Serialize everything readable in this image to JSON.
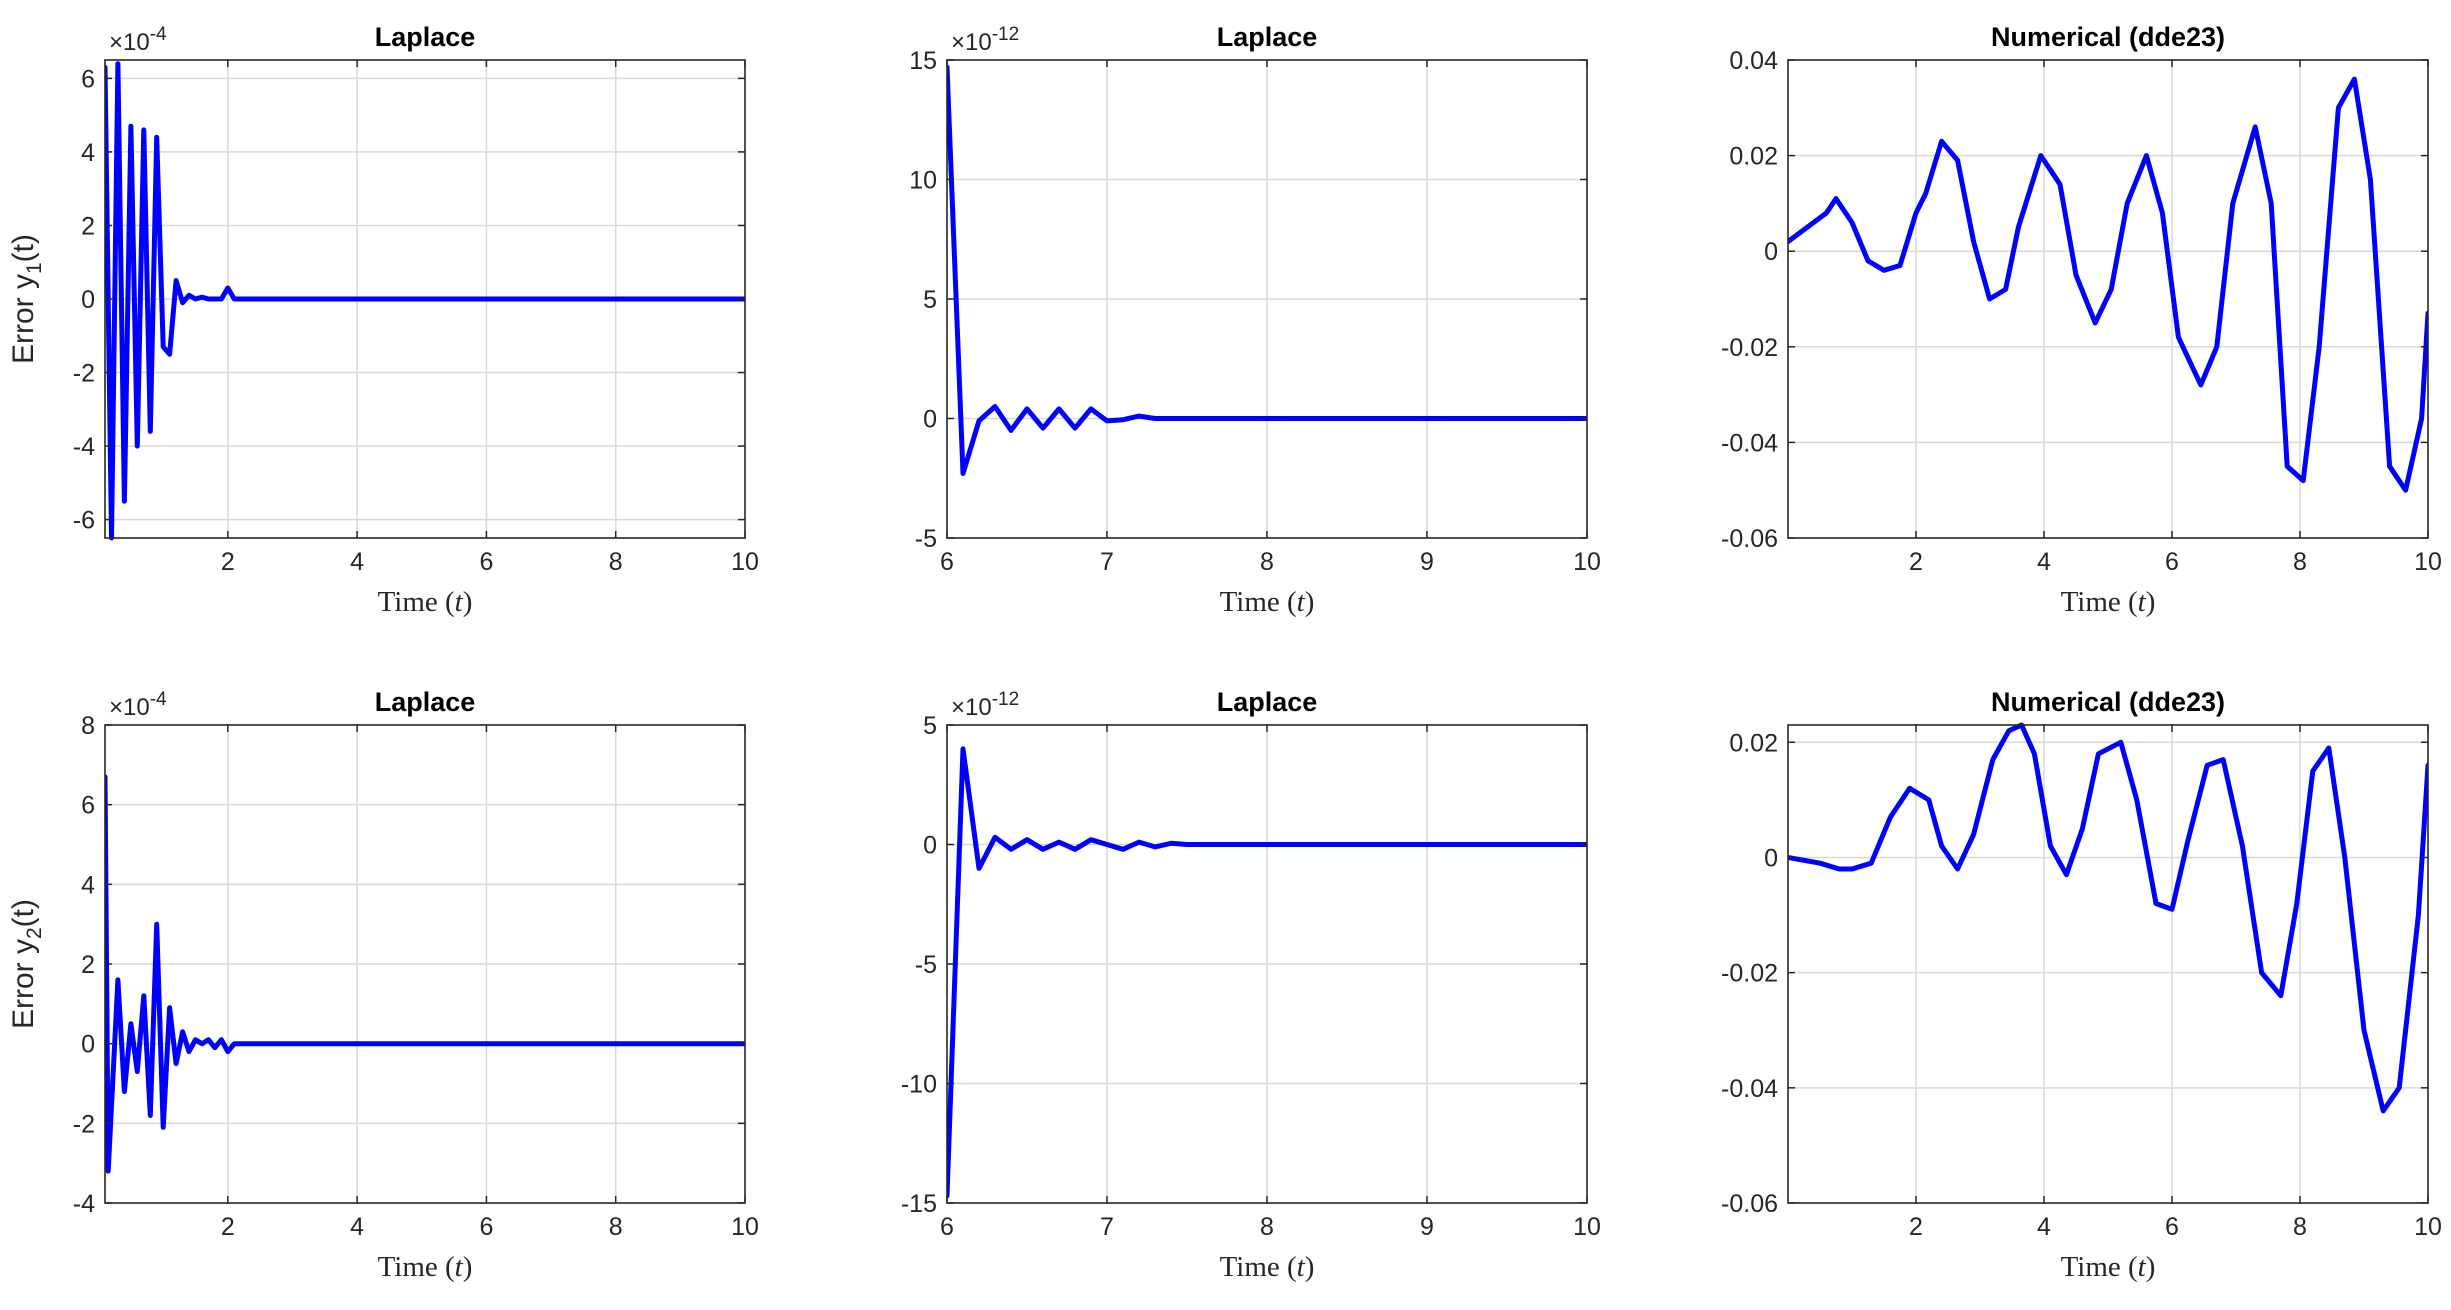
{
  "figure": {
    "xlabel_text": "Time (",
    "xlabel_var": "t",
    "xlabel_close": ")"
  },
  "chart_data": [
    {
      "type": "line",
      "title": "Laplace",
      "xlabel": "Time (t)",
      "ylabel_base": "Error y",
      "ylabel_sub": "1",
      "ylabel_tail": "(t)",
      "exponent": "-4",
      "xlim": [
        0.1,
        10
      ],
      "ylim": [
        -6.5,
        6.5
      ],
      "xticks": [
        2,
        4,
        6,
        8,
        10
      ],
      "yticks": [
        -6,
        -4,
        -2,
        0,
        2,
        4,
        6
      ],
      "grid": true,
      "series": [
        {
          "color": "#0000ff",
          "x": [
            0.1,
            0.2,
            0.3,
            0.4,
            0.5,
            0.6,
            0.7,
            0.8,
            0.9,
            1.0,
            1.1,
            1.2,
            1.3,
            1.4,
            1.5,
            1.6,
            1.7,
            1.8,
            1.9,
            2.0,
            2.1,
            2.2,
            2.5,
            3,
            4,
            5,
            6,
            7,
            8,
            9,
            10
          ],
          "values": [
            6.3,
            -6.5,
            6.4,
            -5.5,
            4.7,
            -4.0,
            4.6,
            -3.6,
            4.4,
            -1.3,
            -1.5,
            0.5,
            -0.1,
            0.1,
            0.0,
            0.05,
            0.0,
            0.0,
            0.0,
            0.3,
            0.0,
            0.0,
            0.0,
            0.0,
            0.0,
            0.0,
            0.0,
            0.0,
            0.0,
            0.0,
            0.0
          ]
        }
      ]
    },
    {
      "type": "line",
      "title": "Laplace",
      "xlabel": "Time (t)",
      "exponent": "-12",
      "xlim": [
        6,
        10
      ],
      "ylim": [
        -5,
        15
      ],
      "xticks": [
        6,
        7,
        8,
        9,
        10
      ],
      "yticks": [
        -5,
        0,
        5,
        10,
        15
      ],
      "grid": true,
      "series": [
        {
          "color": "#0000ff",
          "x": [
            6.0,
            6.1,
            6.2,
            6.3,
            6.4,
            6.5,
            6.6,
            6.7,
            6.8,
            6.9,
            7.0,
            7.1,
            7.2,
            7.3,
            7.5,
            8,
            8.5,
            9,
            9.5,
            10
          ],
          "values": [
            14.7,
            -2.3,
            -0.1,
            0.5,
            -0.5,
            0.4,
            -0.4,
            0.4,
            -0.4,
            0.4,
            -0.1,
            -0.05,
            0.1,
            0.0,
            0.0,
            0.0,
            0.0,
            0.0,
            0.0,
            0.0
          ]
        }
      ]
    },
    {
      "type": "line",
      "title": "Numerical (dde23)",
      "xlabel": "Time (t)",
      "xlim": [
        0,
        10
      ],
      "ylim": [
        -0.06,
        0.04
      ],
      "xticks": [
        2,
        4,
        6,
        8,
        10
      ],
      "yticks": [
        -0.06,
        -0.04,
        -0.02,
        0,
        0.02,
        0.04
      ],
      "ytick_labels": [
        "-0.06",
        "-0.04",
        "-0.02",
        "0",
        "0.02",
        "0.04"
      ],
      "grid": true,
      "series": [
        {
          "color": "#0000ff",
          "x": [
            0,
            0.3,
            0.6,
            0.75,
            1.0,
            1.25,
            1.5,
            1.75,
            2.0,
            2.15,
            2.4,
            2.65,
            2.9,
            3.15,
            3.4,
            3.6,
            3.95,
            4.25,
            4.5,
            4.8,
            5.05,
            5.3,
            5.6,
            5.85,
            6.1,
            6.45,
            6.7,
            6.95,
            7.3,
            7.55,
            7.8,
            8.05,
            8.3,
            8.6,
            8.85,
            9.1,
            9.4,
            9.65,
            9.9,
            10
          ],
          "values": [
            0.002,
            0.005,
            0.008,
            0.011,
            0.006,
            -0.002,
            -0.004,
            -0.003,
            0.008,
            0.012,
            0.023,
            0.019,
            0.002,
            -0.01,
            -0.008,
            0.005,
            0.02,
            0.014,
            -0.005,
            -0.015,
            -0.008,
            0.01,
            0.02,
            0.008,
            -0.018,
            -0.028,
            -0.02,
            0.01,
            0.026,
            0.01,
            -0.045,
            -0.048,
            -0.02,
            0.03,
            0.036,
            0.015,
            -0.045,
            -0.05,
            -0.035,
            -0.013
          ]
        }
      ]
    },
    {
      "type": "line",
      "title": "Laplace",
      "xlabel": "Time (t)",
      "ylabel_base": "Error y",
      "ylabel_sub": "2",
      "ylabel_tail": "(t)",
      "exponent": "-4",
      "xlim": [
        0.1,
        10
      ],
      "ylim": [
        -4,
        8
      ],
      "xticks": [
        2,
        4,
        6,
        8,
        10
      ],
      "yticks": [
        -4,
        -2,
        0,
        2,
        4,
        6,
        8
      ],
      "grid": true,
      "series": [
        {
          "color": "#0000ff",
          "x": [
            0.1,
            0.15,
            0.3,
            0.4,
            0.5,
            0.6,
            0.7,
            0.8,
            0.9,
            1.0,
            1.1,
            1.2,
            1.3,
            1.4,
            1.5,
            1.6,
            1.7,
            1.8,
            1.9,
            2.0,
            2.1,
            2.5,
            3,
            4,
            5,
            6,
            7,
            8,
            9,
            10
          ],
          "values": [
            6.7,
            -3.2,
            1.6,
            -1.2,
            0.5,
            -0.7,
            1.2,
            -1.8,
            3.0,
            -2.1,
            0.9,
            -0.5,
            0.3,
            -0.2,
            0.1,
            0.0,
            0.1,
            -0.1,
            0.1,
            -0.2,
            0.0,
            0.0,
            0.0,
            0.0,
            0.0,
            0.0,
            0.0,
            0.0,
            0.0,
            0.0
          ]
        }
      ]
    },
    {
      "type": "line",
      "title": "Laplace",
      "xlabel": "Time (t)",
      "exponent": "-12",
      "xlim": [
        6,
        10
      ],
      "ylim": [
        -15,
        5
      ],
      "xticks": [
        6,
        7,
        8,
        9,
        10
      ],
      "yticks": [
        -15,
        -10,
        -5,
        0,
        5
      ],
      "grid": true,
      "series": [
        {
          "color": "#0000ff",
          "x": [
            6.0,
            6.1,
            6.2,
            6.3,
            6.4,
            6.5,
            6.6,
            6.7,
            6.8,
            6.9,
            7.0,
            7.1,
            7.2,
            7.3,
            7.4,
            7.5,
            8,
            8.5,
            9,
            9.5,
            10
          ],
          "values": [
            -14.7,
            4.0,
            -1.0,
            0.3,
            -0.2,
            0.2,
            -0.2,
            0.1,
            -0.2,
            0.2,
            0.0,
            -0.2,
            0.1,
            -0.1,
            0.05,
            0.0,
            0.0,
            0.0,
            0.0,
            0.0,
            0.0
          ]
        }
      ]
    },
    {
      "type": "line",
      "title": "Numerical (dde23)",
      "xlabel": "Time (t)",
      "xlim": [
        0,
        10
      ],
      "ylim": [
        -0.06,
        0.023
      ],
      "xticks": [
        2,
        4,
        6,
        8,
        10
      ],
      "yticks": [
        -0.06,
        -0.04,
        -0.02,
        0,
        0.02
      ],
      "ytick_labels": [
        "-0.06",
        "-0.04",
        "-0.02",
        "0",
        "0.02"
      ],
      "grid": true,
      "series": [
        {
          "color": "#0000ff",
          "x": [
            0,
            0.5,
            0.8,
            1.0,
            1.3,
            1.6,
            1.9,
            2.2,
            2.4,
            2.65,
            2.9,
            3.2,
            3.45,
            3.65,
            3.85,
            4.1,
            4.35,
            4.6,
            4.85,
            5.2,
            5.45,
            5.75,
            6.0,
            6.25,
            6.55,
            6.8,
            7.1,
            7.4,
            7.7,
            7.95,
            8.2,
            8.45,
            8.7,
            9.0,
            9.3,
            9.55,
            9.85,
            10
          ],
          "values": [
            0,
            -0.001,
            -0.002,
            -0.002,
            -0.001,
            0.007,
            0.012,
            0.01,
            0.002,
            -0.002,
            0.004,
            0.017,
            0.022,
            0.023,
            0.018,
            0.002,
            -0.003,
            0.005,
            0.018,
            0.02,
            0.01,
            -0.008,
            -0.009,
            0.003,
            0.016,
            0.017,
            0.002,
            -0.02,
            -0.024,
            -0.008,
            0.015,
            0.019,
            0.0,
            -0.03,
            -0.044,
            -0.04,
            -0.01,
            0.016
          ]
        }
      ]
    }
  ]
}
